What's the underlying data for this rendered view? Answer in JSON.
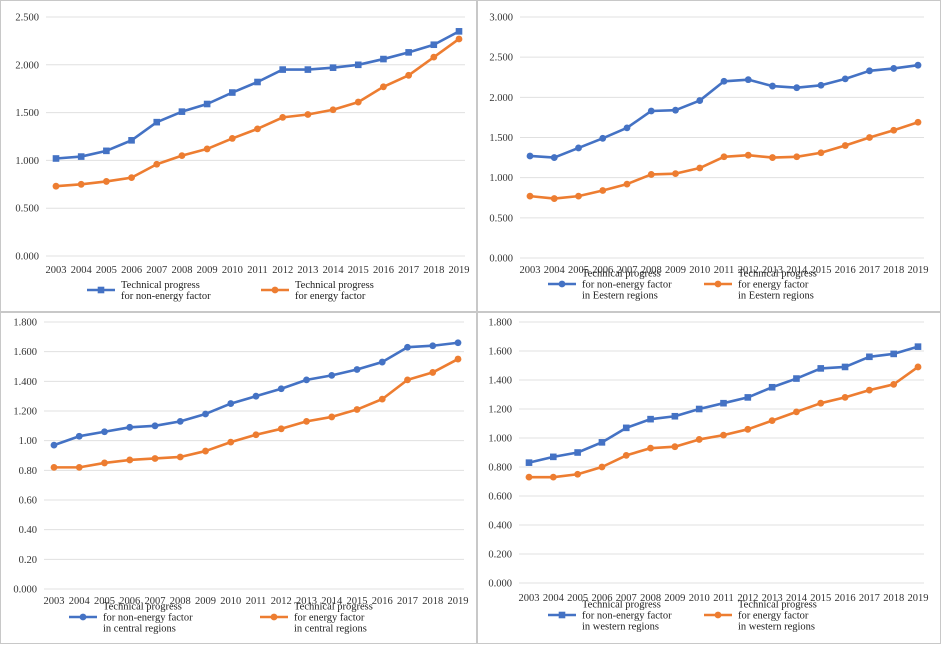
{
  "chart_data": [
    {
      "type": "line",
      "title": "",
      "xlabel": "",
      "ylabel": "",
      "x": [
        "2003",
        "2004",
        "2005",
        "2006",
        "2007",
        "2008",
        "2009",
        "2010",
        "2011",
        "2012",
        "2013",
        "2014",
        "2015",
        "2016",
        "2017",
        "2018",
        "2019"
      ],
      "ylim": [
        0,
        2.5
      ],
      "yticks": [
        "0.000",
        "0.500",
        "1.000",
        "1.500",
        "2.000",
        "2.500"
      ],
      "series": [
        {
          "name": "Technical progress for non-energy factor",
          "legend_lines": [
            "Technical progress",
            "for non-energy factor"
          ],
          "color": "#4472C4",
          "marker": "square",
          "values": [
            1.02,
            1.04,
            1.1,
            1.21,
            1.4,
            1.51,
            1.59,
            1.71,
            1.82,
            1.95,
            1.95,
            1.97,
            2.0,
            2.06,
            2.13,
            2.21,
            2.35
          ]
        },
        {
          "name": "Technical progress for energy factor",
          "legend_lines": [
            "Technical progress",
            "for energy factor"
          ],
          "color": "#ED7D31",
          "marker": "circle",
          "values": [
            0.73,
            0.75,
            0.78,
            0.82,
            0.96,
            1.05,
            1.12,
            1.23,
            1.33,
            1.45,
            1.48,
            1.53,
            1.61,
            1.77,
            1.89,
            2.08,
            2.27
          ]
        }
      ]
    },
    {
      "type": "line",
      "title": "",
      "xlabel": "",
      "ylabel": "",
      "x": [
        "2003",
        "2004",
        "2005",
        "2006",
        "2007",
        "2008",
        "2009",
        "2010",
        "2011",
        "2012",
        "2013",
        "2014",
        "2015",
        "2016",
        "2017",
        "2018",
        "2019"
      ],
      "ylim": [
        0,
        3.0
      ],
      "yticks": [
        "0.000",
        "0.500",
        "1.000",
        "1.500",
        "2.000",
        "2.500",
        "3.000"
      ],
      "series": [
        {
          "name": "Technical progress for non-energy factor in Eestern regions",
          "legend_lines": [
            "Technical progress",
            "for non-energy factor",
            "in Eestern regions"
          ],
          "color": "#4472C4",
          "marker": "circle",
          "values": [
            1.27,
            1.25,
            1.37,
            1.49,
            1.62,
            1.83,
            1.84,
            1.96,
            2.2,
            2.22,
            2.14,
            2.12,
            2.15,
            2.23,
            2.33,
            2.36,
            2.4
          ]
        },
        {
          "name": "Technical progress for energy factor in Eestern regions",
          "legend_lines": [
            "Technical progress",
            "for energy factor",
            "in Eestern regions"
          ],
          "color": "#ED7D31",
          "marker": "circle",
          "values": [
            0.77,
            0.74,
            0.77,
            0.84,
            0.92,
            1.04,
            1.05,
            1.12,
            1.26,
            1.28,
            1.25,
            1.26,
            1.31,
            1.4,
            1.5,
            1.59,
            1.69
          ]
        }
      ]
    },
    {
      "type": "line",
      "title": "",
      "xlabel": "",
      "ylabel": "",
      "x": [
        "2003",
        "2004",
        "2005",
        "2006",
        "2007",
        "2008",
        "2009",
        "2010",
        "2011",
        "2012",
        "2013",
        "2014",
        "2015",
        "2016",
        "2017",
        "2018",
        "2019"
      ],
      "ylim": [
        0,
        1.8
      ],
      "yticks": [
        "0.000",
        "0.20",
        "0.40",
        "0.60",
        "0.80",
        "1.00",
        "1.200",
        "1.400",
        "1.600",
        "1.800"
      ],
      "series": [
        {
          "name": "Technical progress for non-energy factor in central regions",
          "legend_lines": [
            "Technical progress",
            "for non-energy factor",
            "in central regions"
          ],
          "color": "#4472C4",
          "marker": "circle",
          "values": [
            0.97,
            1.03,
            1.06,
            1.09,
            1.1,
            1.13,
            1.18,
            1.25,
            1.3,
            1.35,
            1.41,
            1.44,
            1.48,
            1.53,
            1.63,
            1.64,
            1.66
          ]
        },
        {
          "name": "Technical progress for energy factor in central regions",
          "legend_lines": [
            "Technical progress",
            "for energy factor",
            "in central regions"
          ],
          "color": "#ED7D31",
          "marker": "circle",
          "values": [
            0.82,
            0.82,
            0.85,
            0.87,
            0.88,
            0.89,
            0.93,
            0.99,
            1.04,
            1.08,
            1.13,
            1.16,
            1.21,
            1.28,
            1.41,
            1.46,
            1.55
          ]
        }
      ]
    },
    {
      "type": "line",
      "title": "",
      "xlabel": "",
      "ylabel": "",
      "x": [
        "2003",
        "2004",
        "2005",
        "2006",
        "2007",
        "2008",
        "2009",
        "2010",
        "2011",
        "2012",
        "2013",
        "2014",
        "2015",
        "2016",
        "2017",
        "2018",
        "2019"
      ],
      "ylim": [
        0,
        1.8
      ],
      "yticks": [
        "0.000",
        "0.200",
        "0.400",
        "0.600",
        "0.800",
        "1.000",
        "1.200",
        "1.400",
        "1.600",
        "1.800"
      ],
      "series": [
        {
          "name": "Technical progress for non-energy factor in western regions",
          "legend_lines": [
            "Technical progress",
            "for non-energy factor",
            "in western regions"
          ],
          "color": "#4472C4",
          "marker": "square",
          "values": [
            0.83,
            0.87,
            0.9,
            0.97,
            1.07,
            1.13,
            1.15,
            1.2,
            1.24,
            1.28,
            1.35,
            1.41,
            1.48,
            1.49,
            1.56,
            1.58,
            1.63
          ]
        },
        {
          "name": "Technical progress for energy factor in western regions",
          "legend_lines": [
            "Technical progress",
            "for energy factor",
            "in western regions"
          ],
          "color": "#ED7D31",
          "marker": "circle",
          "values": [
            0.73,
            0.73,
            0.75,
            0.8,
            0.88,
            0.93,
            0.94,
            0.99,
            1.02,
            1.06,
            1.12,
            1.18,
            1.24,
            1.28,
            1.33,
            1.37,
            1.49
          ]
        }
      ]
    }
  ]
}
